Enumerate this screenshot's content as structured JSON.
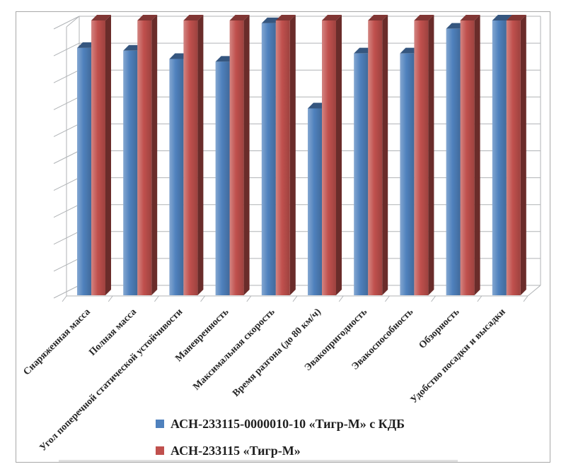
{
  "frame": {
    "border_color": "#a8a8a8",
    "background": "#ffffff"
  },
  "chart_data": {
    "type": "bar",
    "style": "3d-clustered-column",
    "title": "",
    "xlabel": "",
    "ylabel": "",
    "categories": [
      "Снаряженная масса",
      "Полная масса",
      "Угол поперечной статической устойчивости",
      "Маневренность",
      "Максимальная скорость",
      "Время разгона (до 80 км/ч)",
      "Эвакопригодность",
      "Эвакоспособность",
      "Обзорность",
      "Удобство посадки и высадки"
    ],
    "series": [
      {
        "name": "АСН-233115-0000010-10 «Тигр-М» с КДБ",
        "color": "#4f81bd",
        "values": [
          9.0,
          8.9,
          8.6,
          8.5,
          9.9,
          6.8,
          8.8,
          8.8,
          9.7,
          10.0
        ]
      },
      {
        "name": "АСН-233115 «Тигр-М»",
        "color": "#c0504d",
        "values": [
          10,
          10,
          10,
          10,
          10,
          10,
          10,
          10,
          10,
          10
        ]
      }
    ],
    "ylim": [
      0,
      10
    ],
    "gridline_intervals": 10,
    "grid": true,
    "y_tick_labels_visible": false,
    "category_label_rotation": -45,
    "legend_position": "bottom",
    "gridline_color": "#b0b3b6"
  }
}
